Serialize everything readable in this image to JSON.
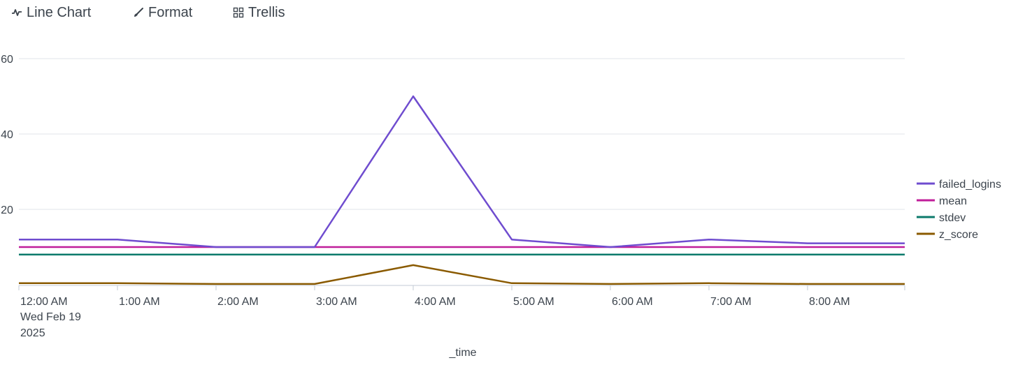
{
  "toolbar": {
    "line_chart_label": "Line Chart",
    "format_label": "Format",
    "trellis_label": "Trellis",
    "line_chart_icon": "line-chart-icon",
    "format_icon": "paintbrush-icon",
    "trellis_icon": "grid-icon"
  },
  "colors": {
    "failed_logins": "#6f4ccf",
    "mean": "#c01e9a",
    "stdev": "#0b7a6b",
    "z_score": "#8a5a00",
    "grid": "#e1e4e8",
    "axis": "#c3cbd4"
  },
  "chart_data": {
    "type": "line",
    "xlabel": "_time",
    "ylabel": "",
    "ylim": [
      0,
      60
    ],
    "yticks": [
      "20",
      "40",
      "60"
    ],
    "y_tick_values": [
      20,
      40,
      60
    ],
    "grid": true,
    "legend_position": "right",
    "x": [
      "12:00 AM",
      "1:00 AM",
      "2:00 AM",
      "3:00 AM",
      "4:00 AM",
      "5:00 AM",
      "6:00 AM",
      "7:00 AM",
      "8:00 AM",
      "9:00 AM"
    ],
    "x_tick_labels": [
      "12:00 AM",
      "1:00 AM",
      "2:00 AM",
      "3:00 AM",
      "4:00 AM",
      "5:00 AM",
      "6:00 AM",
      "7:00 AM",
      "8:00 AM"
    ],
    "x_first_sublabel": [
      "Wed Feb 19",
      "2025"
    ],
    "series": [
      {
        "name": "failed_logins",
        "values": [
          12,
          12,
          10,
          10,
          50,
          12,
          10,
          12,
          11,
          11
        ]
      },
      {
        "name": "mean",
        "values": [
          10,
          10,
          10,
          10,
          10,
          10,
          10,
          10,
          10,
          10
        ]
      },
      {
        "name": "stdev",
        "values": [
          8,
          8,
          8,
          8,
          8,
          8,
          8,
          8,
          8,
          8
        ]
      },
      {
        "name": "z_score",
        "values": [
          0.4,
          0.4,
          0.2,
          0.2,
          5.2,
          0.4,
          0.2,
          0.4,
          0.2,
          0.2
        ]
      }
    ]
  }
}
